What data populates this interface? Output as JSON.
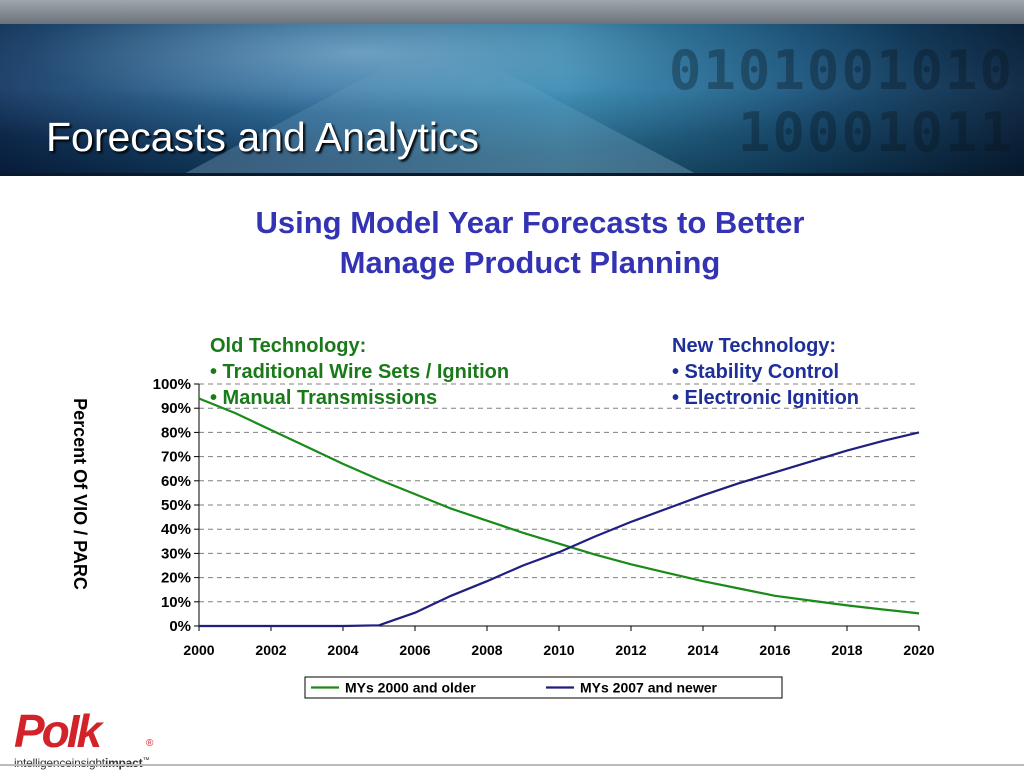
{
  "header": {
    "title": "Forecasts and Analytics",
    "background_digits": [
      "0101001010",
      "10001011"
    ]
  },
  "subtitle_lines": [
    "Using Model Year Forecasts to Better",
    "Manage Product Planning"
  ],
  "annotations": {
    "old": [
      "Old Technology:",
      "• Traditional Wire Sets / Ignition",
      "• Manual Transmissions"
    ],
    "new": [
      "New Technology:",
      "• Stability Control",
      "• Electronic Ignition"
    ]
  },
  "logo": {
    "mark": "PoIk",
    "registered": "®",
    "tagline_parts": [
      "intelligence",
      "insight",
      "impact",
      "™"
    ]
  },
  "colors": {
    "accent_title": "#3333b3",
    "series_old": "#1a8a1a",
    "series_new": "#1f1f80",
    "annotation_old": "#1a7a1a",
    "annotation_new": "#1f2f9a",
    "brand_red": "#d2232a"
  },
  "chart_data": {
    "type": "line",
    "ylabel": "Percent Of VIO / PARC",
    "xlabel": "",
    "xlim": [
      2000,
      2020
    ],
    "ylim": [
      0,
      100
    ],
    "x_ticks": [
      2000,
      2002,
      2004,
      2006,
      2008,
      2010,
      2012,
      2014,
      2016,
      2018,
      2020
    ],
    "y_ticks": [
      0,
      10,
      20,
      30,
      40,
      50,
      60,
      70,
      80,
      90,
      100
    ],
    "y_tick_labels": [
      "0%",
      "10%",
      "20%",
      "30%",
      "40%",
      "50%",
      "60%",
      "70%",
      "80%",
      "90%",
      "100%"
    ],
    "grid": "horizontal dashed",
    "legend_position": "bottom",
    "series": [
      {
        "name": "MYs 2000 and older",
        "color": "#1a8a1a",
        "x": [
          2000,
          2001,
          2002,
          2003,
          2004,
          2005,
          2006,
          2007,
          2008,
          2009,
          2010,
          2011,
          2012,
          2013,
          2014,
          2015,
          2016,
          2017,
          2018,
          2019,
          2020
        ],
        "y": [
          94,
          88,
          81,
          74,
          67,
          60.5,
          54.5,
          48.5,
          43.5,
          38.5,
          34,
          29.5,
          25.5,
          22,
          18.5,
          15.5,
          12.5,
          10.5,
          8.5,
          6.8,
          5.2
        ]
      },
      {
        "name": "MYs 2007 and newer",
        "color": "#1f1f80",
        "x": [
          2000,
          2001,
          2002,
          2003,
          2004,
          2005,
          2006,
          2007,
          2008,
          2009,
          2010,
          2011,
          2012,
          2013,
          2014,
          2015,
          2016,
          2017,
          2018,
          2019,
          2020
        ],
        "y": [
          0,
          0,
          0,
          0,
          0,
          0.3,
          5.5,
          12.5,
          18.5,
          25,
          30.5,
          37,
          43,
          48.5,
          54,
          59,
          63.5,
          68,
          72.5,
          76.5,
          80
        ]
      }
    ]
  }
}
